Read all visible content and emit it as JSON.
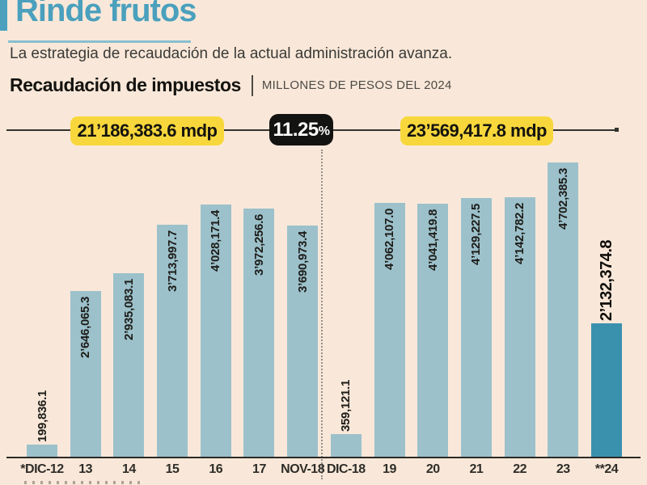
{
  "header": {
    "title": "Rinde frutos",
    "subtitle": "La estrategia de recaudación de la actual administración avanza.",
    "section_title": "Recaudación de impuestos",
    "section_unit": "MILLONES DE PESOS DEL 2024"
  },
  "summary": {
    "left_total": "21’186,383.6 mdp",
    "pct_value": "11.25",
    "pct_symbol": "%",
    "right_total": "23’569,417.8 mdp"
  },
  "colors": {
    "background": "#f9e8d9",
    "accent_teal": "#4aa0bd",
    "badge_yellow": "#f8d73c",
    "badge_black": "#131311",
    "bar": "#9cc1cb",
    "bar_highlight": "#3a91ae",
    "ink": "#14130f"
  },
  "chart_data": {
    "type": "bar",
    "title": "Recaudación de impuestos",
    "subtitle": "Millones de pesos del 2024",
    "xlabel": "",
    "ylabel": "",
    "ylim": [
      0,
      4702385.3
    ],
    "grid": false,
    "legend": "none",
    "categories": [
      "*DIC-12",
      "13",
      "14",
      "15",
      "16",
      "17",
      "NOV-18",
      "DIC-18",
      "19",
      "20",
      "21",
      "22",
      "23",
      "**24"
    ],
    "values": [
      199836.1,
      2646065.3,
      2935083.1,
      3713997.7,
      4028171.4,
      3972256.6,
      3690973.4,
      359121.1,
      4062107.0,
      4041419.8,
      4129227.5,
      4142782.2,
      4702385.3,
      2132374.8
    ],
    "value_labels": [
      "199,836.1",
      "2’646,065.3",
      "2’935,083.1",
      "3’713,997.7",
      "4’028,171.4",
      "3’972,256.6",
      "3’690,973.4",
      "359,121.1",
      "4’062,107.0",
      "4’041,419.8",
      "4’129,227.5",
      "4’142,782.2",
      "4’702,385.3",
      "2’132,374.8"
    ],
    "label_outside": [
      true,
      false,
      false,
      false,
      false,
      false,
      false,
      true,
      false,
      false,
      false,
      false,
      false,
      true
    ],
    "highlight_index": 13,
    "divider_after_index": 6,
    "annotations": {
      "period_1_total": "21’186,383.6 mdp",
      "period_2_total": "23’569,417.8 mdp",
      "change_percent": "11.25%"
    }
  }
}
